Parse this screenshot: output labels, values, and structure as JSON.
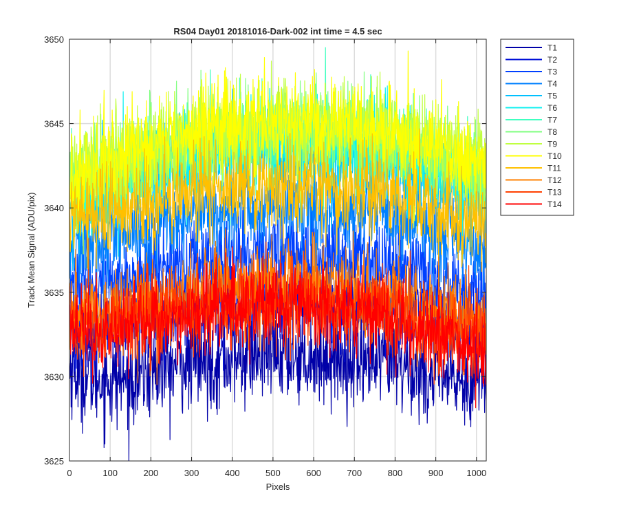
{
  "chart_data": {
    "type": "line",
    "title": "RS04 Day01 20181016-Dark-002 int time = 4.5 sec",
    "xlabel": "Pixels",
    "ylabel": "Track Mean Signal (ADU/pix)",
    "xlim": [
      0,
      1024
    ],
    "ylim": [
      3625,
      3650
    ],
    "grid": true,
    "legend_placement": "outside-top-right",
    "x_ticks": [
      0,
      100,
      200,
      300,
      400,
      500,
      600,
      700,
      800,
      900,
      1000
    ],
    "y_ticks": [
      3625,
      3630,
      3635,
      3640,
      3645,
      3650
    ],
    "x_tick_labels": [
      "0",
      "100",
      "200",
      "300",
      "400",
      "500",
      "600",
      "700",
      "800",
      "900",
      "1000"
    ],
    "y_tick_labels": [
      "3625",
      "3630",
      "3635",
      "3640",
      "3645",
      "3650"
    ],
    "x": [
      0,
      64,
      128,
      192,
      256,
      320,
      384,
      448,
      512,
      576,
      640,
      704,
      768,
      832,
      896,
      960,
      1023
    ],
    "series": [
      {
        "name": "T1",
        "color": "#0000a8",
        "noise": 1.4,
        "values": [
          3630.5,
          3629.8,
          3629.8,
          3630.2,
          3630.6,
          3630.9,
          3631.0,
          3631.2,
          3631.3,
          3631.3,
          3631.2,
          3631.0,
          3630.8,
          3630.5,
          3630.0,
          3629.8,
          3630.2
        ]
      },
      {
        "name": "T2",
        "color": "#0010d8",
        "noise": 1.3,
        "values": [
          3633.0,
          3632.6,
          3632.8,
          3633.4,
          3633.8,
          3634.2,
          3634.4,
          3634.6,
          3634.7,
          3634.7,
          3634.6,
          3634.4,
          3634.1,
          3633.8,
          3633.3,
          3632.8,
          3632.6
        ]
      },
      {
        "name": "T3",
        "color": "#0040ff",
        "noise": 1.3,
        "values": [
          3635.5,
          3635.4,
          3635.8,
          3636.2,
          3636.6,
          3636.9,
          3637.1,
          3637.3,
          3637.4,
          3637.4,
          3637.3,
          3637.1,
          3636.8,
          3636.4,
          3635.9,
          3635.3,
          3634.8
        ]
      },
      {
        "name": "T4",
        "color": "#0080ff",
        "noise": 1.3,
        "values": [
          3637.5,
          3637.8,
          3638.3,
          3638.8,
          3639.2,
          3639.6,
          3639.8,
          3640.0,
          3640.1,
          3640.1,
          3640.0,
          3639.8,
          3639.5,
          3639.1,
          3638.6,
          3638.0,
          3637.5
        ]
      },
      {
        "name": "T5",
        "color": "#00c0ff",
        "noise": 1.3,
        "values": [
          3639.8,
          3640.6,
          3641.2,
          3641.8,
          3642.3,
          3642.7,
          3643.0,
          3643.2,
          3643.3,
          3643.3,
          3643.2,
          3643.0,
          3642.7,
          3642.3,
          3641.8,
          3641.2,
          3640.6
        ]
      },
      {
        "name": "T6",
        "color": "#10f0f0",
        "noise": 1.3,
        "values": [
          3640.5,
          3641.2,
          3641.8,
          3642.4,
          3642.9,
          3643.3,
          3643.6,
          3643.8,
          3643.9,
          3643.9,
          3643.8,
          3643.6,
          3643.3,
          3642.9,
          3642.4,
          3641.8,
          3641.2
        ]
      },
      {
        "name": "T7",
        "color": "#40ffc0",
        "noise": 1.3,
        "values": [
          3641.0,
          3641.6,
          3642.2,
          3642.8,
          3643.3,
          3643.7,
          3644.0,
          3644.2,
          3644.3,
          3644.3,
          3644.2,
          3644.0,
          3643.7,
          3643.3,
          3642.8,
          3642.2,
          3641.6
        ]
      },
      {
        "name": "T8",
        "color": "#80ff80",
        "noise": 1.3,
        "values": [
          3641.3,
          3641.9,
          3642.5,
          3643.1,
          3643.6,
          3644.0,
          3644.3,
          3644.5,
          3644.6,
          3644.6,
          3644.5,
          3644.3,
          3644.0,
          3643.6,
          3643.1,
          3642.5,
          3641.9
        ]
      },
      {
        "name": "T9",
        "color": "#c0ff40",
        "noise": 1.4,
        "values": [
          3641.5,
          3642.2,
          3642.8,
          3643.4,
          3643.9,
          3644.3,
          3644.6,
          3644.8,
          3644.9,
          3644.9,
          3644.8,
          3644.6,
          3644.3,
          3643.9,
          3643.4,
          3642.8,
          3642.2
        ]
      },
      {
        "name": "T10",
        "color": "#ffff00",
        "noise": 1.4,
        "values": [
          3641.8,
          3642.4,
          3643.0,
          3643.6,
          3644.1,
          3644.5,
          3644.8,
          3645.0,
          3645.1,
          3645.1,
          3645.0,
          3644.8,
          3644.5,
          3644.1,
          3643.6,
          3643.0,
          3642.4
        ]
      },
      {
        "name": "T11",
        "color": "#ffc000",
        "noise": 1.3,
        "values": [
          3639.5,
          3639.7,
          3640.0,
          3640.3,
          3640.6,
          3640.8,
          3641.0,
          3641.1,
          3641.2,
          3641.2,
          3641.1,
          3641.0,
          3640.8,
          3640.5,
          3640.1,
          3639.6,
          3639.1
        ]
      },
      {
        "name": "T12",
        "color": "#ff8000",
        "noise": 1.3,
        "values": [
          3634.0,
          3633.8,
          3634.0,
          3634.4,
          3634.7,
          3635.0,
          3635.2,
          3635.3,
          3635.4,
          3635.4,
          3635.3,
          3635.1,
          3634.9,
          3634.5,
          3634.0,
          3633.5,
          3633.0
        ]
      },
      {
        "name": "T13",
        "color": "#ff4000",
        "noise": 1.3,
        "values": [
          3633.2,
          3632.9,
          3633.2,
          3633.6,
          3633.9,
          3634.2,
          3634.4,
          3634.5,
          3634.6,
          3634.6,
          3634.5,
          3634.3,
          3634.0,
          3633.6,
          3633.0,
          3632.4,
          3631.9
        ]
      },
      {
        "name": "T14",
        "color": "#ff0000",
        "noise": 1.2,
        "values": [
          3632.8,
          3632.5,
          3632.8,
          3633.2,
          3633.6,
          3633.9,
          3634.1,
          3634.2,
          3634.3,
          3634.3,
          3634.2,
          3634.0,
          3633.7,
          3633.2,
          3632.6,
          3632.0,
          3631.5
        ]
      }
    ]
  }
}
